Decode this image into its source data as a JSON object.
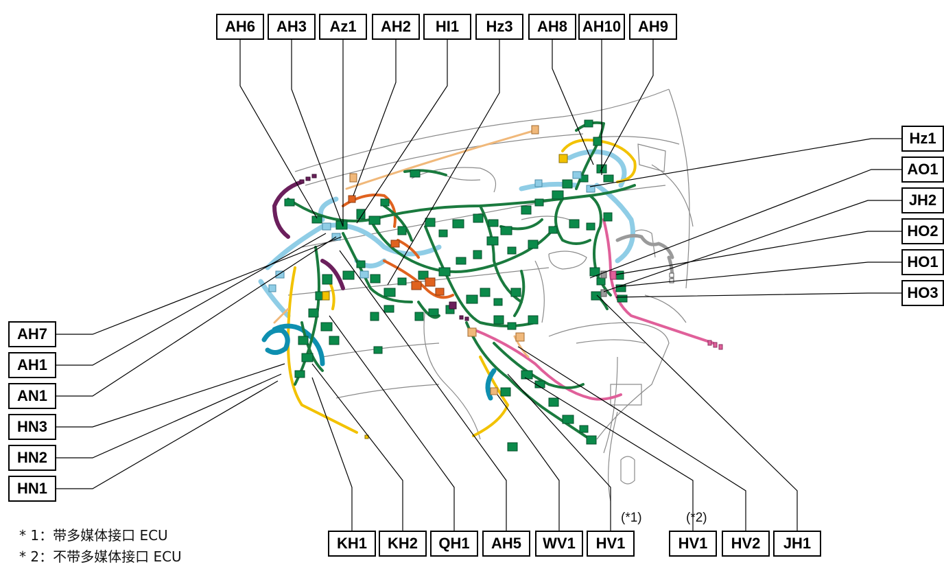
{
  "labels": {
    "top": [
      "AH6",
      "AH3",
      "Az1",
      "AH2",
      "HI1",
      "Hz3",
      "AH8",
      "AH10",
      "AH9"
    ],
    "right": [
      "Hz1",
      "AO1",
      "JH2",
      "HO2",
      "HO1",
      "HO3"
    ],
    "left": [
      "AH7",
      "AH1",
      "AN1",
      "HN3",
      "HN2",
      "HN1"
    ],
    "bottom": [
      "KH1",
      "KH2",
      "QH1",
      "AH5",
      "WV1",
      "HV1",
      "HV1",
      "HV2",
      "JH1"
    ]
  },
  "variants": [
    "(*1)",
    "(*2)"
  ],
  "footnotes": [
    "* 1：带多媒体接口 ECU",
    "* 2：不带多媒体接口 ECU"
  ],
  "colors": {
    "main_harness": "#1a7a3e",
    "connector": "#0b8a4a",
    "light_blue": "#8fcde6",
    "teal": "#0e8fb0",
    "yellow": "#f2c200",
    "orange_red": "#e0621f",
    "pink": "#e0609a",
    "purple": "#6b1f5c",
    "tan": "#f0b87a",
    "gray": "#9a9a9a"
  }
}
